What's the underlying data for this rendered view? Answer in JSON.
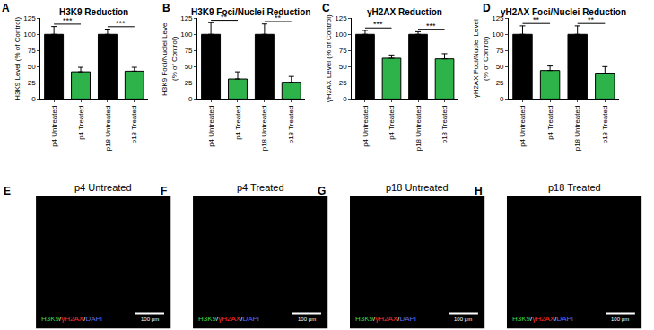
{
  "chart_data": [
    {
      "type": "bar",
      "panel_label": "A",
      "title": "H3K9 Reduction",
      "y_label": "H3K9 Level (% of Control)",
      "categories": [
        "p4 Untreated",
        "p4 Treated",
        "p18 Untreated",
        "p18 Treated"
      ],
      "values": [
        100,
        42,
        100,
        43
      ],
      "errors": [
        12,
        7,
        8,
        6
      ],
      "colors": [
        "#000000",
        "#2db34a",
        "#000000",
        "#2db34a"
      ],
      "ylim": [
        0,
        125
      ],
      "yticks": [
        0,
        25,
        50,
        75,
        100,
        125
      ],
      "grid": false,
      "significance": [
        {
          "from": "p4 Untreated",
          "to": "p4 Treated",
          "label": "***"
        },
        {
          "from": "p18 Untreated",
          "to": "p18 Treated",
          "label": "***"
        }
      ]
    },
    {
      "type": "bar",
      "panel_label": "B",
      "title": "H3K9 Foci/Nuclei Reduction",
      "y_label": "H3K9 Foci/Nuclei Level\n(% of Control)",
      "categories": [
        "p4 Untreated",
        "p4 Treated",
        "p18 Untreated",
        "p18 Treated"
      ],
      "values": [
        100,
        31,
        100,
        26
      ],
      "errors": [
        18,
        11,
        16,
        9
      ],
      "colors": [
        "#000000",
        "#2db34a",
        "#000000",
        "#2db34a"
      ],
      "ylim": [
        0,
        125
      ],
      "yticks": [
        0,
        25,
        50,
        75,
        100,
        125
      ],
      "grid": false,
      "significance": [
        {
          "from": "p4 Untreated",
          "to": "p4 Treated",
          "label": "**"
        },
        {
          "from": "p18 Untreated",
          "to": "p18 Treated",
          "label": "**"
        }
      ]
    },
    {
      "type": "bar",
      "panel_label": "C",
      "title": "γH2AX Reduction",
      "y_label": "γH2AX Level (% of Control)",
      "categories": [
        "p4 Untreated",
        "p4 Treated",
        "p18 Untreated",
        "p18 Treated"
      ],
      "values": [
        100,
        63,
        100,
        62
      ],
      "errors": [
        6,
        5,
        4,
        8
      ],
      "colors": [
        "#000000",
        "#2db34a",
        "#000000",
        "#2db34a"
      ],
      "ylim": [
        0,
        125
      ],
      "yticks": [
        0,
        25,
        50,
        75,
        100,
        125
      ],
      "grid": false,
      "significance": [
        {
          "from": "p4 Untreated",
          "to": "p4 Treated",
          "label": "***"
        },
        {
          "from": "p18 Untreated",
          "to": "p18 Treated",
          "label": "***"
        }
      ]
    },
    {
      "type": "bar",
      "panel_label": "D",
      "title": "γH2AX Foci/Nuclei Reduction",
      "y_label": "γH2AX Foci/Nuclei Level\n(% of Control)",
      "categories": [
        "p4 Untreated",
        "p4 Treated",
        "p18 Untreated",
        "p18 Treated"
      ],
      "values": [
        100,
        44,
        100,
        40
      ],
      "errors": [
        13,
        7,
        13,
        10
      ],
      "colors": [
        "#000000",
        "#2db34a",
        "#000000",
        "#2db34a"
      ],
      "ylim": [
        0,
        125
      ],
      "yticks": [
        0,
        25,
        50,
        75,
        100,
        125
      ],
      "grid": false,
      "significance": [
        {
          "from": "p4 Untreated",
          "to": "p4 Treated",
          "label": "**"
        },
        {
          "from": "p18 Untreated",
          "to": "p18 Treated",
          "label": "**"
        }
      ]
    }
  ],
  "images": [
    {
      "panel_label": "E",
      "title": "p4 Untreated",
      "stain_text": [
        "H3K9",
        "/",
        "γH2AX",
        "/",
        "DAPI"
      ],
      "stain_colors": [
        "#3ddc4a",
        "#ffffff",
        "#ff3030",
        "#ffffff",
        "#5a6cff"
      ],
      "scale_bar": "100 µm"
    },
    {
      "panel_label": "F",
      "title": "p4 Treated",
      "stain_text": [
        "H3K9",
        "/",
        "γH2AX",
        "/",
        "DAPI"
      ],
      "stain_colors": [
        "#3ddc4a",
        "#ffffff",
        "#ff3030",
        "#ffffff",
        "#5a6cff"
      ],
      "scale_bar": "100 µm"
    },
    {
      "panel_label": "G",
      "title": "p18 Untreated",
      "stain_text": [
        "H3K9",
        "/",
        "γH2AX",
        "/",
        "DAPI"
      ],
      "stain_colors": [
        "#3ddc4a",
        "#ffffff",
        "#ff3030",
        "#ffffff",
        "#5a6cff"
      ],
      "scale_bar": "100 µm"
    },
    {
      "panel_label": "H",
      "title": "p18 Treated",
      "stain_text": [
        "H3K9",
        "/",
        "γH2AX",
        "/",
        "DAPI"
      ],
      "stain_colors": [
        "#3ddc4a",
        "#ffffff",
        "#ff3030",
        "#ffffff",
        "#5a6cff"
      ],
      "scale_bar": "100 µm"
    }
  ]
}
